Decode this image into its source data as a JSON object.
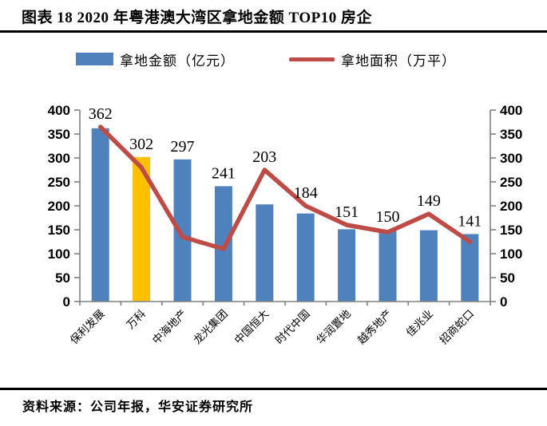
{
  "figure": {
    "title": "图表 18 2020 年粤港澳大湾区拿地金额 TOP10 房企",
    "source": "资料来源：公司年报，华安证券研究所"
  },
  "colors": {
    "bar": "#4f81bd",
    "bar_highlight": "#ffc000",
    "line": "#bf4b47",
    "axis": "#808080",
    "text": "#000000",
    "divider": "#000000"
  },
  "chart_data": {
    "type": "bar",
    "subtype": "bar+line combo, dual mirrored y-axes",
    "title": "2020 年粤港澳大湾区拿地金额 TOP10 房企",
    "categories": [
      "保利发展",
      "万科",
      "中海地产",
      "龙光集团",
      "中国恒大",
      "时代中国",
      "华润置地",
      "越秀地产",
      "佳兆业",
      "招商蛇口"
    ],
    "series": [
      {
        "name": "拿地金额（亿元）",
        "type": "bar",
        "values": [
          362,
          302,
          297,
          241,
          203,
          184,
          151,
          150,
          149,
          141
        ],
        "data_labels": [
          "362",
          "302",
          "297",
          "241",
          "203",
          "184",
          "151",
          "150",
          "149",
          "141"
        ],
        "highlight_index": 1,
        "highlight_category": "万科"
      },
      {
        "name": "拿地面积（万平）",
        "type": "line",
        "values": [
          365,
          280,
          135,
          110,
          275,
          200,
          160,
          145,
          183,
          125
        ],
        "values_note": "estimated from line position against axis"
      }
    ],
    "ylim": [
      0,
      400
    ],
    "ytick_step": 50,
    "yticks": [
      0,
      50,
      100,
      150,
      200,
      250,
      300,
      350,
      400
    ],
    "right_axis_mirrors_left": true,
    "grid": false,
    "legend_position": "top",
    "x_label_rotation_deg": 45
  }
}
